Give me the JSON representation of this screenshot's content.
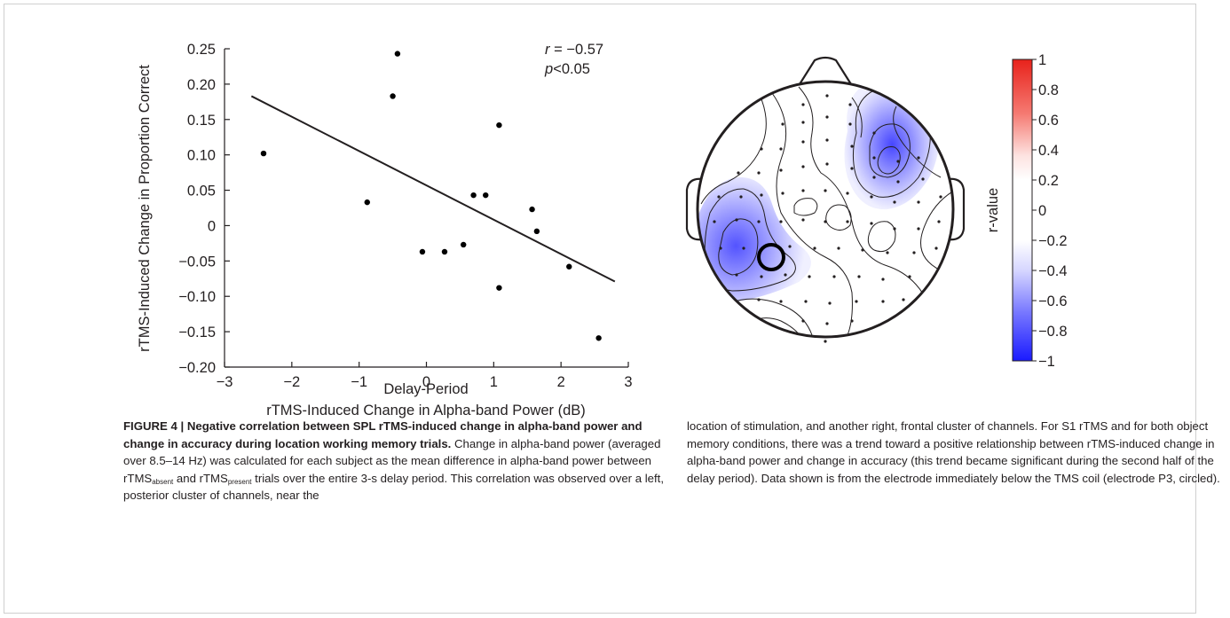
{
  "figure": {
    "scatter": {
      "chart_data": {
        "type": "scatter",
        "title": "",
        "xlabel_line1": "Delay-Period",
        "xlabel_line2": "rTMS-Induced Change in Alpha-band Power (dB)",
        "ylabel": "rTMS-Induced Change in Proportion Correct",
        "xlim": [
          -3,
          3
        ],
        "ylim": [
          -0.2,
          0.25
        ],
        "xticks": [
          "−3",
          "−2",
          "−1",
          "0",
          "1",
          "2",
          "3"
        ],
        "xtick_values": [
          -3,
          -2,
          -1,
          0,
          1,
          2,
          3
        ],
        "yticks": [
          "0.25",
          "0.20",
          "0.15",
          "0.10",
          "0.05",
          "0",
          "−0.05",
          "−0.10",
          "−0.15",
          "−0.20"
        ],
        "ytick_values": [
          0.25,
          0.2,
          0.15,
          0.1,
          0.05,
          0,
          -0.05,
          -0.1,
          -0.15,
          -0.2
        ],
        "points": [
          {
            "x": -2.42,
            "y": 0.102
          },
          {
            "x": -0.88,
            "y": 0.033
          },
          {
            "x": -0.5,
            "y": 0.183
          },
          {
            "x": -0.43,
            "y": 0.243
          },
          {
            "x": -0.06,
            "y": -0.037
          },
          {
            "x": 0.27,
            "y": -0.037
          },
          {
            "x": 0.55,
            "y": -0.027
          },
          {
            "x": 0.7,
            "y": 0.043
          },
          {
            "x": 0.88,
            "y": 0.043
          },
          {
            "x": 1.08,
            "y": 0.142
          },
          {
            "x": 1.08,
            "y": -0.088
          },
          {
            "x": 1.57,
            "y": 0.023
          },
          {
            "x": 1.64,
            "y": -0.008
          },
          {
            "x": 2.12,
            "y": -0.058
          },
          {
            "x": 2.56,
            "y": -0.159
          }
        ],
        "fit_line": {
          "x": [
            -2.6,
            2.8
          ],
          "y": [
            0.183,
            -0.079
          ]
        },
        "grid": false
      },
      "stat_r_symbol": "r",
      "stat_r_value": " = −0.57",
      "stat_p_symbol": "p",
      "stat_p_value": "<0.05"
    },
    "topomap": {
      "colorbar_label": "r-value",
      "colorbar_ticks": [
        "1",
        "0.8",
        "0.6",
        "0.4",
        "0.2",
        "0",
        "−0.2",
        "−0.4",
        "−0.6",
        "−0.8",
        "−1"
      ],
      "colorbar_tick_values": [
        1,
        0.8,
        0.6,
        0.4,
        0.2,
        0,
        -0.2,
        -0.4,
        -0.6,
        -0.8,
        -1
      ],
      "colors": {
        "positive": "#e8221b",
        "neutral": "#ffffff",
        "negative": "#1a1aff"
      },
      "circled_electrode": "P3"
    }
  },
  "caption": {
    "label": "FIGURE 4 | ",
    "title": "Negative correlation between SPL rTMS-induced change in alpha-band power and change in accuracy during location working memory trials.",
    "t1": " Change in alpha-band power (averaged over 8.5–14 Hz) was calculated for each subject as the mean difference in alpha-band power between rTMS",
    "sub1": "absent",
    "t2": " and rTMS",
    "sub2": "present",
    "t3": " trials over the entire 3-s delay period. This correlation was observed over a left, posterior cluster of channels, near the",
    "right": "location of stimulation, and another right, frontal cluster of channels. For S1 rTMS and for both object memory conditions, there was a trend toward a positive relationship between rTMS-induced change in alpha-band power and change in accuracy (this trend became significant during the second half of the delay period). Data shown is from the electrode immediately below the TMS coil (electrode P3, circled)."
  }
}
